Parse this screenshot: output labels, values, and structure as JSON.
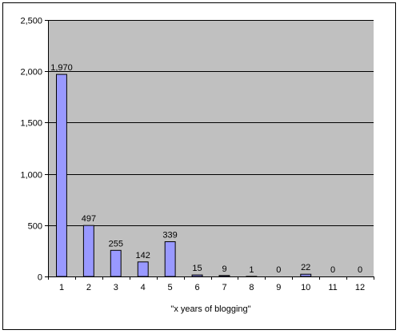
{
  "chart_data": {
    "type": "bar",
    "title": "",
    "xlabel": "\"x years of blogging\"",
    "ylabel": "",
    "categories": [
      "1",
      "2",
      "3",
      "4",
      "5",
      "6",
      "7",
      "8",
      "9",
      "10",
      "11",
      "12"
    ],
    "values": [
      1970,
      497,
      255,
      142,
      339,
      15,
      9,
      1,
      0,
      22,
      0,
      0
    ],
    "data_labels": [
      "1,970",
      "497",
      "255",
      "142",
      "339",
      "15",
      "9",
      "1",
      "0",
      "22",
      "0",
      "0"
    ],
    "ylim": [
      0,
      2500
    ],
    "yticks": [
      0,
      500,
      1000,
      1500,
      2000,
      2500
    ],
    "ytick_labels": [
      "0",
      "500",
      "1,000",
      "1,500",
      "2,000",
      "2,500"
    ],
    "grid": true,
    "legend": "none",
    "colors": {
      "plot_background": "#c0c0c0",
      "bar_fill": "#9999ff",
      "bar_stroke": "#000000",
      "gridline": "#000000"
    }
  }
}
